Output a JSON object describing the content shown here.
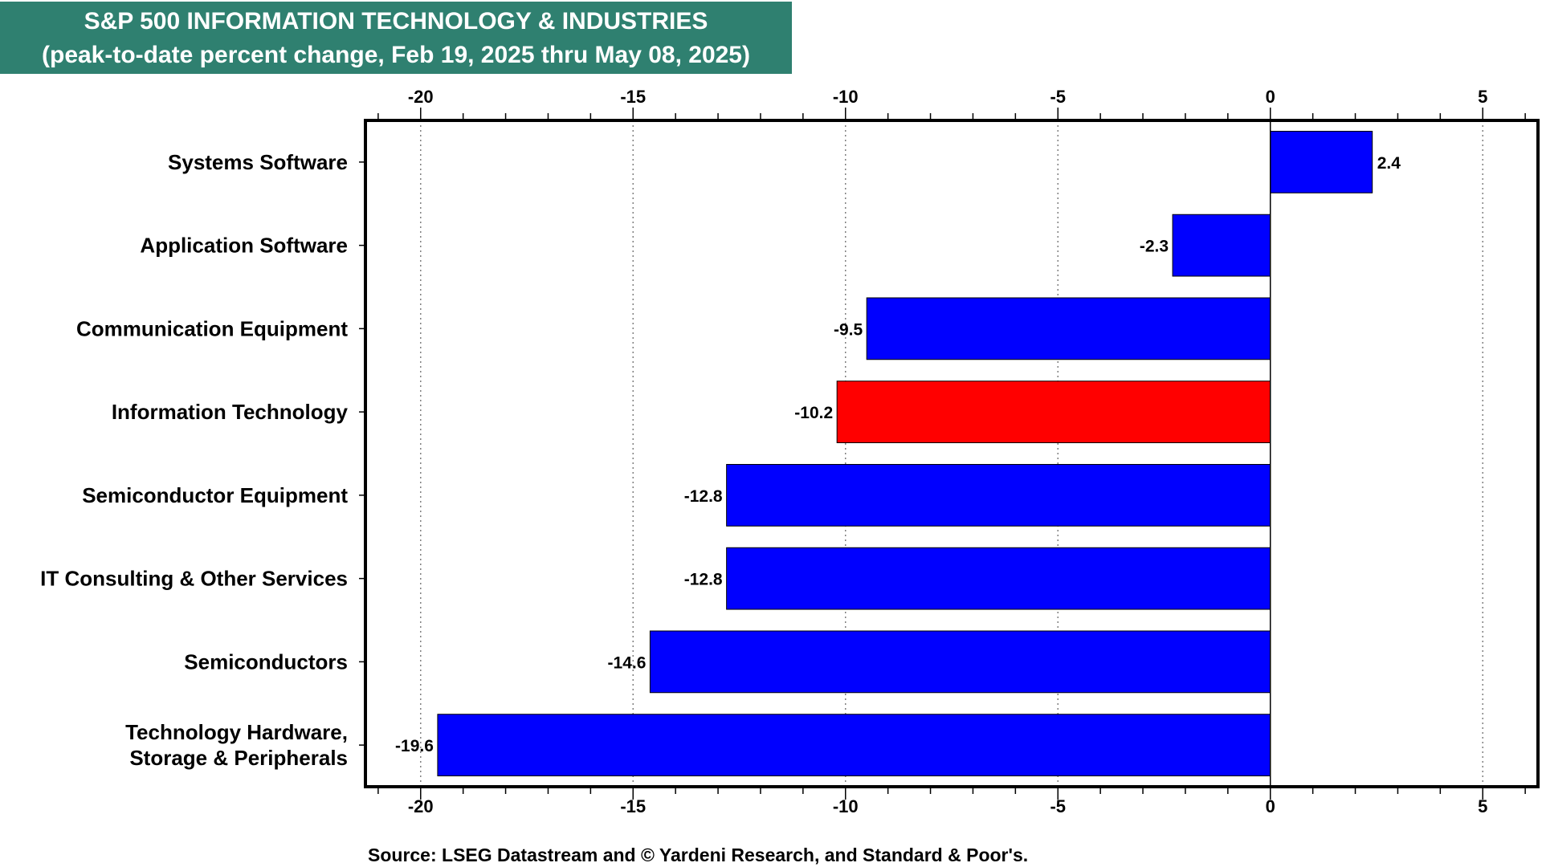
{
  "chart_data": {
    "type": "bar",
    "orientation": "horizontal",
    "title": "S&P 500 INFORMATION TECHNOLOGY & INDUSTRIES",
    "subtitle": "(peak-to-date percent change, Feb 19, 2025 thru May 08, 2025)",
    "source": "Source: LSEG Datastream and © Yardeni Research, and Standard & Poor's.",
    "categories": [
      [
        "Systems Software"
      ],
      [
        "Application Software"
      ],
      [
        "Communication Equipment"
      ],
      [
        "Information Technology"
      ],
      [
        "Semiconductor Equipment"
      ],
      [
        "IT Consulting & Other Services"
      ],
      [
        "Semiconductors"
      ],
      [
        "Technology Hardware,",
        "Storage & Peripherals"
      ]
    ],
    "values": [
      2.4,
      -2.3,
      -9.5,
      -10.2,
      -12.8,
      -12.8,
      -14.6,
      -19.6
    ],
    "value_labels": [
      "2.4",
      "-2.3",
      "-9.5",
      "-10.2",
      "-12.8",
      "-12.8",
      "-14.6",
      "-19.6"
    ],
    "bar_colors": [
      "#0000ff",
      "#0000ff",
      "#0000ff",
      "#ff0000",
      "#0000ff",
      "#0000ff",
      "#0000ff",
      "#0000ff"
    ],
    "xlim": [
      -21.3,
      6.3
    ],
    "xticks": [
      -20,
      -15,
      -10,
      -5,
      0,
      5
    ],
    "xtick_labels": [
      "-20",
      "-15",
      "-10",
      "-5",
      "0",
      "5"
    ],
    "minor_tick_step": 1,
    "xaxis_position": "top-and-bottom",
    "grid": "vertical-dotted"
  }
}
